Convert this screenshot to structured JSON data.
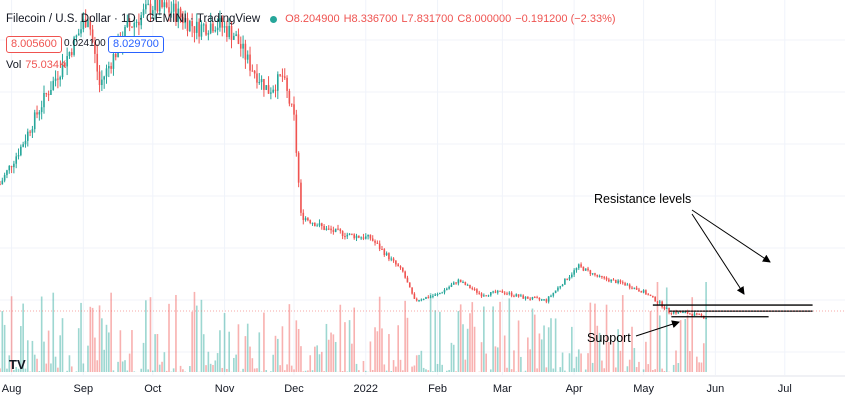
{
  "header": {
    "title": "Filecoin / U.S. Dollar · 1D · GEMINI · TradingView",
    "open": "O8.204900",
    "high": "H8.336700",
    "low": "L7.831700",
    "close": "C8.000000",
    "change": "−0.191200 (−2.33%)"
  },
  "price_boxes": {
    "bid": "8.005600",
    "spread": "0.024100",
    "ask": "8.029700"
  },
  "volume": {
    "label": "Vol",
    "value": "75.034K"
  },
  "annotations": {
    "resistance": "Resistance levels",
    "support": "Support"
  },
  "logo": "TV",
  "colors": {
    "up": "#26a69a",
    "down": "#ef5350",
    "lines": "#000000",
    "grid": "#f0f3fa"
  },
  "chart_data": {
    "type": "candlestick",
    "title": "Filecoin / U.S. Dollar · 1D · GEMINI",
    "x_tick_labels": [
      "Aug",
      "Sep",
      "Oct",
      "Nov",
      "Dec",
      "2022",
      "Feb",
      "Mar",
      "Apr",
      "May",
      "Jun",
      "Jul"
    ],
    "x_ticks": [
      "2021-08-01",
      "2021-09-01",
      "2021-10-01",
      "2021-11-01",
      "2021-12-01",
      "2022-01-01",
      "2022-02-01",
      "2022-03-01",
      "2022-04-01",
      "2022-05-01",
      "2022-06-01",
      "2022-07-01"
    ],
    "xlim": [
      "2021-07-27",
      "2022-07-27"
    ],
    "ylim": [
      0,
      120
    ],
    "grid": true,
    "close_path": [
      [
        "2021-07-27",
        55
      ],
      [
        "2021-08-05",
        68
      ],
      [
        "2021-08-15",
        85
      ],
      [
        "2021-08-25",
        100
      ],
      [
        "2021-09-03",
        115
      ],
      [
        "2021-09-08",
        90
      ],
      [
        "2021-09-20",
        110
      ],
      [
        "2021-10-01",
        118
      ],
      [
        "2021-10-10",
        116
      ],
      [
        "2021-10-20",
        110
      ],
      [
        "2021-10-28",
        112
      ],
      [
        "2021-11-05",
        108
      ],
      [
        "2021-11-12",
        97
      ],
      [
        "2021-11-20",
        88
      ],
      [
        "2021-11-26",
        93
      ],
      [
        "2021-12-01",
        78
      ],
      [
        "2021-12-04",
        44
      ],
      [
        "2021-12-15",
        39
      ],
      [
        "2021-12-25",
        37
      ],
      [
        "2022-01-03",
        36
      ],
      [
        "2022-01-10",
        30
      ],
      [
        "2022-01-17",
        24
      ],
      [
        "2022-01-22",
        14
      ],
      [
        "2022-02-01",
        16
      ],
      [
        "2022-02-10",
        21
      ],
      [
        "2022-02-20",
        16
      ],
      [
        "2022-03-01",
        17
      ],
      [
        "2022-03-10",
        15
      ],
      [
        "2022-03-20",
        14
      ],
      [
        "2022-03-28",
        21
      ],
      [
        "2022-04-03",
        26
      ],
      [
        "2022-04-12",
        22
      ],
      [
        "2022-04-22",
        20
      ],
      [
        "2022-05-01",
        17
      ],
      [
        "2022-05-08",
        13
      ],
      [
        "2022-05-12",
        10
      ],
      [
        "2022-05-20",
        9.5
      ],
      [
        "2022-05-28",
        8.0
      ]
    ],
    "resistance_levels": [
      12.336,
      10.2
    ],
    "support_level": 8.2,
    "volume_scale_max": 110
  }
}
